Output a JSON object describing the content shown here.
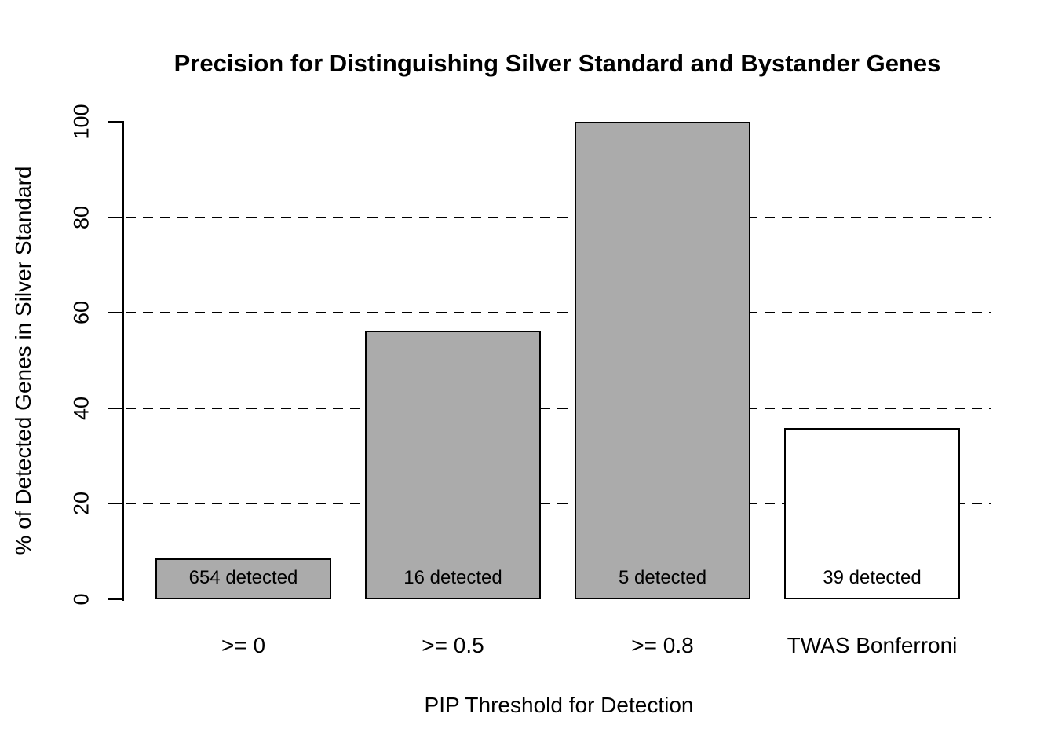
{
  "chart_data": {
    "type": "bar",
    "title": "Precision for Distinguishing Silver Standard and Bystander Genes",
    "xlabel": "PIP Threshold for Detection",
    "ylabel": "% of Detected Genes in Silver Standard",
    "categories": [
      ">= 0",
      ">= 0.5",
      ">= 0.8",
      "TWAS Bonferroni"
    ],
    "values": [
      8.6,
      56.2,
      100,
      35.9
    ],
    "bar_labels": [
      "654 detected",
      "16 detected",
      "5 detected",
      "39 detected"
    ],
    "bar_colors": [
      "#ABABAB",
      "#ABABAB",
      "#ABABAB",
      "#FFFFFF"
    ],
    "bar_border_color": "#000000",
    "ylim": [
      0,
      100
    ],
    "yticks": [
      0,
      20,
      40,
      60,
      80,
      100
    ],
    "gridlines_at": [
      20,
      40,
      60,
      80
    ],
    "grid_style": "dashed",
    "legend": "none",
    "background_color": "#FFFFFF",
    "text_color": "#000000"
  }
}
